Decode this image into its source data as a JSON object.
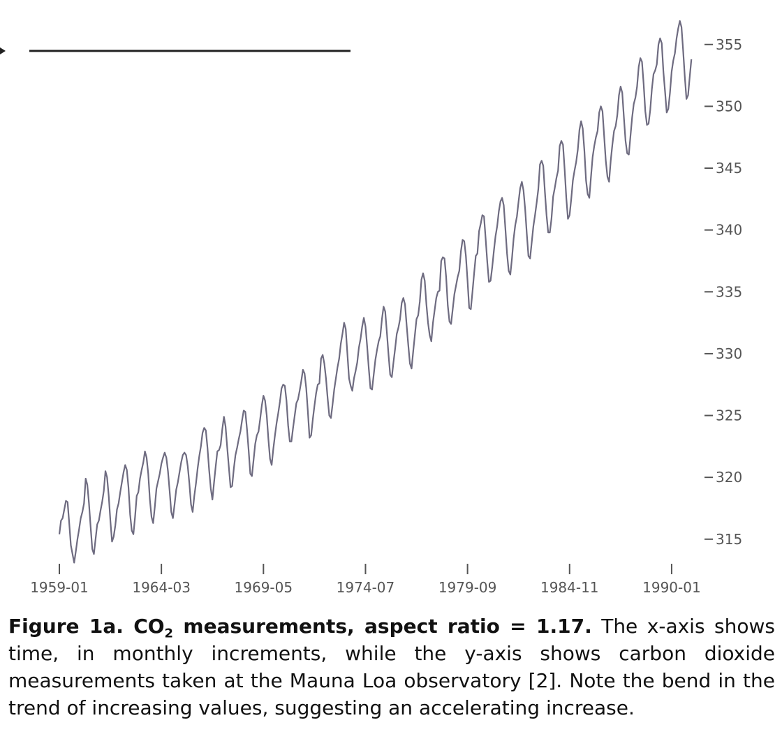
{
  "chart_data": {
    "type": "line",
    "x_ticks": [
      "1959-01",
      "1964-03",
      "1969-05",
      "1974-07",
      "1979-09",
      "1984-11",
      "1990-01"
    ],
    "y_ticks": [
      "315",
      "320",
      "325",
      "330",
      "335",
      "340",
      "345",
      "350",
      "355"
    ],
    "xlim": [
      "1959-01",
      "1991-06"
    ],
    "ylim": [
      312.9,
      357.3
    ],
    "y_axis_position": "right",
    "grid": false,
    "series": [
      {
        "x_start": "1959-01",
        "frequency": "monthly",
        "color": "#6e6b80",
        "values": [
          315.4,
          316.5,
          316.7,
          317.4,
          318.1,
          318.0,
          316.3,
          314.5,
          313.8,
          313.1,
          314.0,
          315.0,
          315.8,
          316.7,
          317.2,
          317.9,
          319.9,
          319.4,
          317.9,
          316.0,
          314.2,
          313.8,
          315.0,
          316.2,
          316.5,
          317.3,
          318.0,
          318.9,
          320.5,
          320.0,
          318.5,
          316.5,
          314.8,
          315.2,
          316.1,
          317.4,
          317.9,
          318.8,
          319.6,
          320.4,
          321.0,
          320.6,
          319.2,
          317.0,
          315.7,
          315.4,
          316.8,
          318.5,
          318.8,
          319.9,
          320.6,
          321.2,
          322.1,
          321.6,
          320.3,
          318.2,
          316.8,
          316.3,
          317.6,
          319.1,
          319.7,
          320.3,
          321.1,
          321.6,
          322.0,
          321.6,
          320.5,
          318.9,
          317.2,
          316.7,
          317.8,
          319.0,
          319.6,
          320.4,
          321.2,
          321.8,
          322.0,
          321.8,
          320.9,
          319.5,
          317.8,
          317.2,
          318.5,
          319.5,
          320.7,
          321.7,
          322.5,
          323.6,
          324.0,
          323.8,
          322.4,
          320.6,
          319.1,
          318.2,
          319.6,
          320.9,
          322.1,
          322.2,
          322.6,
          323.9,
          324.9,
          324.1,
          322.4,
          320.8,
          319.2,
          319.3,
          320.7,
          321.8,
          322.4,
          323.1,
          323.7,
          324.6,
          325.4,
          325.3,
          323.9,
          322.2,
          320.3,
          320.1,
          321.4,
          322.7,
          323.4,
          323.7,
          324.7,
          325.8,
          326.6,
          326.2,
          325.0,
          323.1,
          321.5,
          321.0,
          322.3,
          323.4,
          324.4,
          325.2,
          326.1,
          327.2,
          327.5,
          327.4,
          326.2,
          324.2,
          322.9,
          322.9,
          324.0,
          325.0,
          326.0,
          326.3,
          327.0,
          327.8,
          328.7,
          328.4,
          327.2,
          325.3,
          323.2,
          323.4,
          324.7,
          325.8,
          326.8,
          327.5,
          327.6,
          329.6,
          329.9,
          329.2,
          328.0,
          326.4,
          325.0,
          324.8,
          325.9,
          327.1,
          328.0,
          328.9,
          329.6,
          330.8,
          331.6,
          332.5,
          332.0,
          330.0,
          328.0,
          327.4,
          327.0,
          328.0,
          328.6,
          329.3,
          330.5,
          331.2,
          332.2,
          332.9,
          332.2,
          330.6,
          328.8,
          327.2,
          327.1,
          328.3,
          329.5,
          330.3,
          331.0,
          331.4,
          332.8,
          333.8,
          333.4,
          331.7,
          329.9,
          328.3,
          328.1,
          329.3,
          330.4,
          331.6,
          332.1,
          332.8,
          334.1,
          334.5,
          334.0,
          332.3,
          330.7,
          329.2,
          328.8,
          330.2,
          331.5,
          332.8,
          333.1,
          334.2,
          336.0,
          336.5,
          335.9,
          334.0,
          332.5,
          331.5,
          331.0,
          332.5,
          333.5,
          334.5,
          335.0,
          335.1,
          337.5,
          337.8,
          337.7,
          336.2,
          333.9,
          332.6,
          332.4,
          333.6,
          334.8,
          335.5,
          336.2,
          336.7,
          338.3,
          339.2,
          339.1,
          337.9,
          335.9,
          333.7,
          333.6,
          335.0,
          336.5,
          337.9,
          338.1,
          339.9,
          340.5,
          341.2,
          341.1,
          339.3,
          337.4,
          335.8,
          335.9,
          337.0,
          338.3,
          339.5,
          340.3,
          341.5,
          342.3,
          342.6,
          342.0,
          340.1,
          338.1,
          336.7,
          336.4,
          337.7,
          339.3,
          340.4,
          341.1,
          342.3,
          343.4,
          343.9,
          343.2,
          341.7,
          339.7,
          337.9,
          337.7,
          339.0,
          340.3,
          341.2,
          342.2,
          343.3,
          345.3,
          345.6,
          345.2,
          343.1,
          341.2,
          339.8,
          339.8,
          340.9,
          342.7,
          343.4,
          344.2,
          344.8,
          346.8,
          347.2,
          346.9,
          344.9,
          342.6,
          340.9,
          341.2,
          342.5,
          344.0,
          344.8,
          345.5,
          346.5,
          348.1,
          348.8,
          348.2,
          346.4,
          344.0,
          342.9,
          342.6,
          344.3,
          345.9,
          346.8,
          347.5,
          348.0,
          349.5,
          350.0,
          349.6,
          347.6,
          345.6,
          344.3,
          343.9,
          345.6,
          346.9,
          348.0,
          348.4,
          349.3,
          350.9,
          351.6,
          351.1,
          349.1,
          347.2,
          346.2,
          346.1,
          347.6,
          349.1,
          350.2,
          350.7,
          351.6,
          353.2,
          353.9,
          353.6,
          351.8,
          349.6,
          348.5,
          348.6,
          349.7,
          351.4,
          352.6,
          352.9,
          353.4,
          355.0,
          355.5,
          355.1,
          352.8,
          351.2,
          349.5,
          349.8,
          351.1,
          352.8,
          353.7,
          354.3,
          355.5,
          356.3,
          356.9,
          356.4,
          354.5,
          352.4,
          350.6,
          350.9,
          352.4,
          353.8
        ]
      }
    ]
  },
  "caption": {
    "bold_prefix": "Figure 1a. CO",
    "bold_subscript": "2",
    "bold_suffix": " measurements, aspect ratio = 1.17.",
    "text": " The x-axis shows time, in monthly increments, while the y-axis shows carbon dioxide measurements taken at the Mauna Loa observatory [2]. Note the bend in the trend of increasing values, suggesting an accelerating increase."
  }
}
